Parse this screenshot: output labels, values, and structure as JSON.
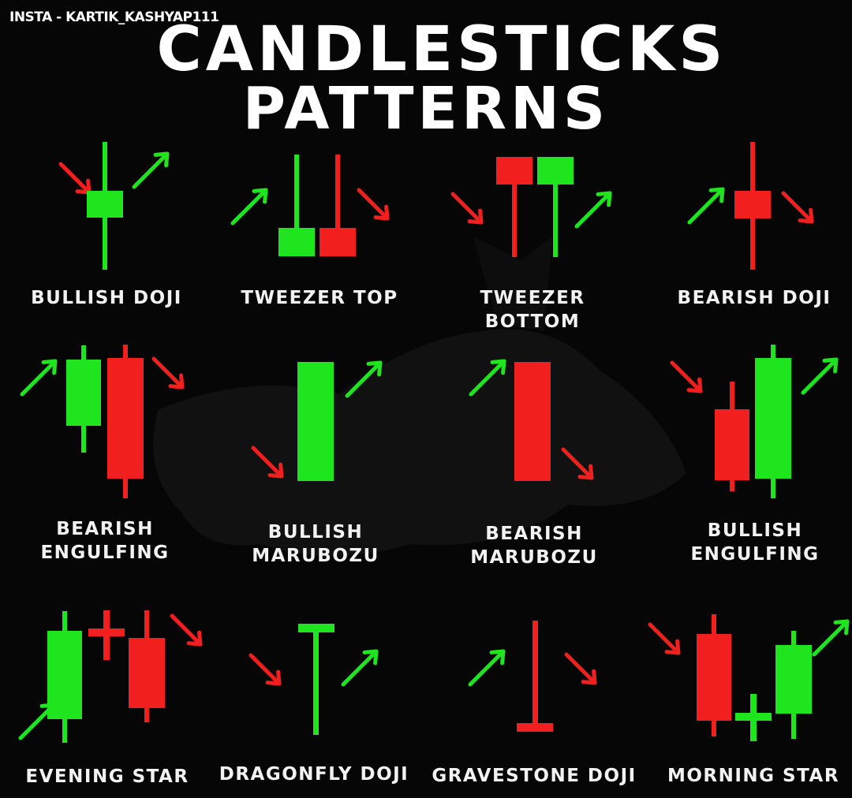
{
  "watermark": "INSTA - KARTIK_KASHYAP111",
  "title": {
    "line1": "CANDLESTICKS",
    "line2": "PATTERNS"
  },
  "colors": {
    "bull": "#1fe51f",
    "bear": "#f21f1f",
    "text": "#ffffff",
    "background": "#060606"
  },
  "patterns": [
    {
      "id": "bullish-doji",
      "label_lines": [
        "BULLISH DOJI"
      ]
    },
    {
      "id": "tweezer-top",
      "label_lines": [
        "TWEEZER TOP"
      ]
    },
    {
      "id": "tweezer-bottom",
      "label_lines": [
        "TWEEZER BOTTOM"
      ]
    },
    {
      "id": "bearish-doji",
      "label_lines": [
        "BEARISH DOJI"
      ]
    },
    {
      "id": "bearish-engulfing",
      "label_lines": [
        "BEARISH",
        "ENGULFING"
      ]
    },
    {
      "id": "bullish-marubozu",
      "label_lines": [
        "BULLISH",
        "MARUBOZU"
      ]
    },
    {
      "id": "bearish-marubozu",
      "label_lines": [
        "BEARISH",
        "MARUBOZU"
      ]
    },
    {
      "id": "bullish-engulfing",
      "label_lines": [
        "BULLISH",
        "ENGULFING"
      ]
    },
    {
      "id": "evening-star",
      "label_lines": [
        "EVENING STAR"
      ]
    },
    {
      "id": "dragonfly-doji",
      "label_lines": [
        "DRAGONFLY DOJI"
      ]
    },
    {
      "id": "gravestone-doji",
      "label_lines": [
        "GRAVESTONE DOJI"
      ]
    },
    {
      "id": "morning-star",
      "label_lines": [
        "MORNING STAR"
      ]
    }
  ]
}
